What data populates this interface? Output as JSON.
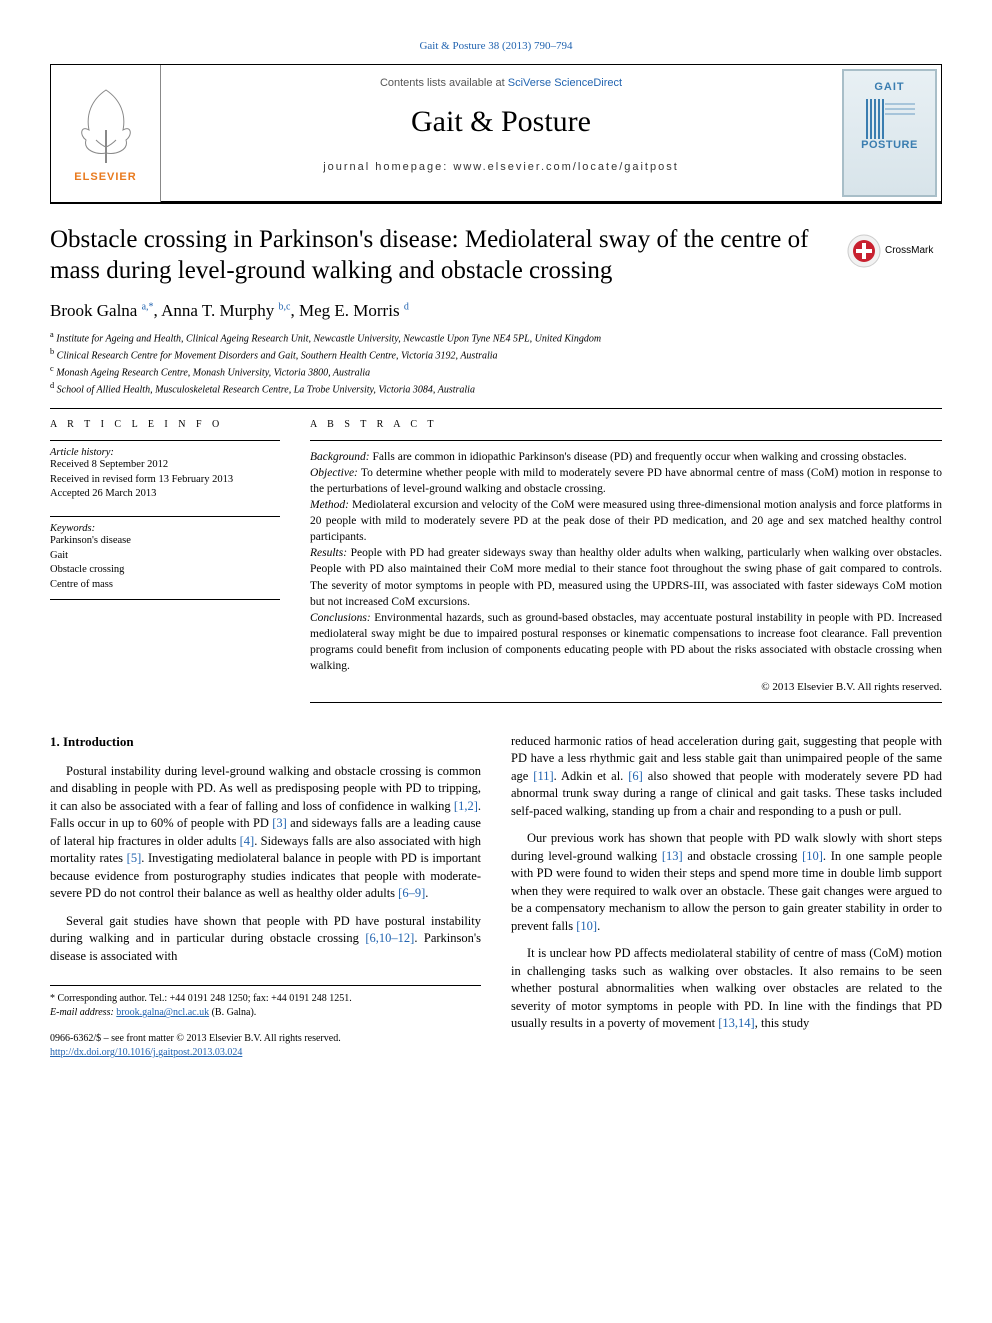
{
  "citation": "Gait & Posture 38 (2013) 790–794",
  "contents_prefix": "Contents lists available at ",
  "contents_link": "SciVerse ScienceDirect",
  "journal_name": "Gait & Posture",
  "homepage_prefix": "journal homepage: ",
  "homepage": "www.elsevier.com/locate/gaitpost",
  "elsevier": "ELSEVIER",
  "cover": {
    "line1": "GAIT",
    "line2": "POSTURE"
  },
  "crossmark": "CrossMark",
  "title": "Obstacle crossing in Parkinson's disease: Mediolateral sway of the centre of mass during level-ground walking and obstacle crossing",
  "authors": [
    {
      "name": "Brook Galna",
      "sup": "a,*"
    },
    {
      "name": "Anna T. Murphy",
      "sup": "b,c"
    },
    {
      "name": "Meg E. Morris",
      "sup": "d"
    }
  ],
  "affiliations": [
    {
      "sup": "a",
      "text": "Institute for Ageing and Health, Clinical Ageing Research Unit, Newcastle University, Newcastle Upon Tyne NE4 5PL, United Kingdom"
    },
    {
      "sup": "b",
      "text": "Clinical Research Centre for Movement Disorders and Gait, Southern Health Centre, Victoria 3192, Australia"
    },
    {
      "sup": "c",
      "text": "Monash Ageing Research Centre, Monash University, Victoria 3800, Australia"
    },
    {
      "sup": "d",
      "text": "School of Allied Health, Musculoskeletal Research Centre, La Trobe University, Victoria 3084, Australia"
    }
  ],
  "info_heading": "A R T I C L E    I N F O",
  "history_label": "Article history:",
  "history": [
    "Received 8 September 2012",
    "Received in revised form 13 February 2013",
    "Accepted 26 March 2013"
  ],
  "keywords_label": "Keywords:",
  "keywords": [
    "Parkinson's disease",
    "Gait",
    "Obstacle crossing",
    "Centre of mass"
  ],
  "abstract_heading": "A B S T R A C T",
  "abstract": {
    "background_label": "Background:",
    "background": "Falls are common in idiopathic Parkinson's disease (PD) and frequently occur when walking and crossing obstacles.",
    "objective_label": "Objective:",
    "objective": "To determine whether people with mild to moderately severe PD have abnormal centre of mass (CoM) motion in response to the perturbations of level-ground walking and obstacle crossing.",
    "method_label": "Method:",
    "method": "Mediolateral excursion and velocity of the CoM were measured using three-dimensional motion analysis and force platforms in 20 people with mild to moderately severe PD at the peak dose of their PD medication, and 20 age and sex matched healthy control participants.",
    "results_label": "Results:",
    "results": "People with PD had greater sideways sway than healthy older adults when walking, particularly when walking over obstacles. People with PD also maintained their CoM more medial to their stance foot throughout the swing phase of gait compared to controls. The severity of motor symptoms in people with PD, measured using the UPDRS-III, was associated with faster sideways CoM motion but not increased CoM excursions.",
    "conclusions_label": "Conclusions:",
    "conclusions": "Environmental hazards, such as ground-based obstacles, may accentuate postural instability in people with PD. Increased mediolateral sway might be due to impaired postural responses or kinematic compensations to increase foot clearance. Fall prevention programs could benefit from inclusion of components educating people with PD about the risks associated with obstacle crossing when walking."
  },
  "copyright": "© 2013 Elsevier B.V. All rights reserved.",
  "section1_heading": "1. Introduction",
  "para1": "Postural instability during level-ground walking and obstacle crossing is common and disabling in people with PD. As well as predisposing people with PD to tripping, it can also be associated with a fear of falling and loss of confidence in walking [1,2]. Falls occur in up to 60% of people with PD [3] and sideways falls are a leading cause of lateral hip fractures in older adults [4]. Sideways falls are also associated with high mortality rates [5]. Investigating mediolateral balance in people with PD is important because evidence from posturography studies indicates that people with moderate-severe PD do not control their balance as well as healthy older adults [6–9].",
  "para2": "Several gait studies have shown that people with PD have postural instability during walking and in particular during obstacle crossing [6,10–12]. Parkinson's disease is associated with",
  "para3": "reduced harmonic ratios of head acceleration during gait, suggesting that people with PD have a less rhythmic gait and less stable gait than unimpaired people of the same age [11]. Adkin et al. [6] also showed that people with moderately severe PD had abnormal trunk sway during a range of clinical and gait tasks. These tasks included self-paced walking, standing up from a chair and responding to a push or pull.",
  "para4": "Our previous work has shown that people with PD walk slowly with short steps during level-ground walking [13] and obstacle crossing [10]. In one sample people with PD were found to widen their steps and spend more time in double limb support when they were required to walk over an obstacle. These gait changes were argued to be a compensatory mechanism to allow the person to gain greater stability in order to prevent falls [10].",
  "para5": "It is unclear how PD affects mediolateral stability of centre of mass (CoM) motion in challenging tasks such as walking over obstacles. It also remains to be seen whether postural abnormalities when walking over obstacles are related to the severity of motor symptoms in people with PD. In line with the findings that PD usually results in a poverty of movement [13,14], this study",
  "corresponding_label": "* Corresponding author. Tel.: +44 0191 248 1250; fax: +44 0191 248 1251.",
  "email_label": "E-mail address:",
  "email": "brook.galna@ncl.ac.uk",
  "email_suffix": "(B. Galna).",
  "issn": "0966-6362/$ – see front matter © 2013 Elsevier B.V. All rights reserved.",
  "doi": "http://dx.doi.org/10.1016/j.gaitpost.2013.03.024",
  "colors": {
    "link": "#2264b0",
    "elsevier_orange": "#e87a1e",
    "cover_blue": "#3a7db0",
    "crossmark_bg": "#f2f2f2"
  }
}
